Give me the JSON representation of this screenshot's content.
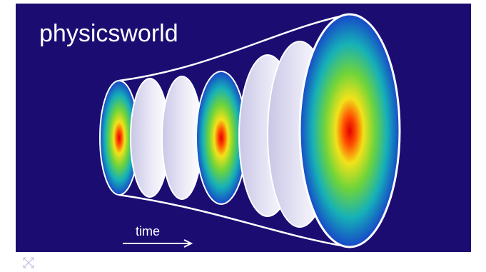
{
  "brand": "physicsworld",
  "arrow_label": "time"
}
